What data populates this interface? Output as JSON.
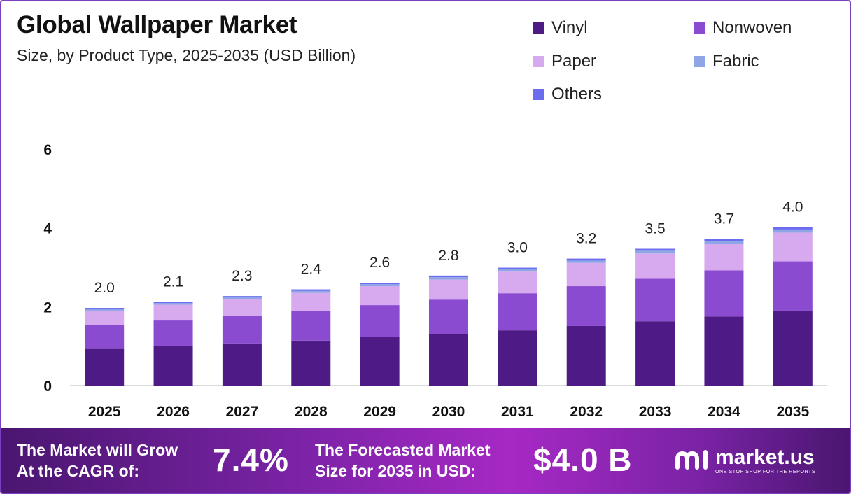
{
  "header": {
    "title": "Global Wallpaper Market",
    "subtitle": "Size, by Product Type, 2025-2035 (USD Billion)"
  },
  "legend": [
    {
      "label": "Vinyl",
      "color": "#4e1a85"
    },
    {
      "label": "Nonwoven",
      "color": "#8a4bd0"
    },
    {
      "label": "Paper",
      "color": "#d7a9ef"
    },
    {
      "label": "Fabric",
      "color": "#8fa6e6"
    },
    {
      "label": "Others",
      "color": "#6b6cf0"
    }
  ],
  "chart_data": {
    "type": "bar",
    "stacked": true,
    "categories": [
      "2025",
      "2026",
      "2027",
      "2028",
      "2029",
      "2030",
      "2031",
      "2032",
      "2033",
      "2034",
      "2035"
    ],
    "series": [
      {
        "name": "Vinyl",
        "color": "#4e1a85",
        "values": [
          0.93,
          1.0,
          1.07,
          1.14,
          1.23,
          1.31,
          1.4,
          1.51,
          1.63,
          1.75,
          1.9
        ]
      },
      {
        "name": "Nonwoven",
        "color": "#8a4bd0",
        "values": [
          0.6,
          0.65,
          0.69,
          0.75,
          0.81,
          0.87,
          0.94,
          1.01,
          1.08,
          1.17,
          1.25
        ]
      },
      {
        "name": "Paper",
        "color": "#d7a9ef",
        "values": [
          0.37,
          0.4,
          0.43,
          0.46,
          0.48,
          0.51,
          0.55,
          0.59,
          0.64,
          0.68,
          0.73
        ]
      },
      {
        "name": "Fabric",
        "color": "#8fa6e6",
        "values": [
          0.04,
          0.04,
          0.05,
          0.05,
          0.05,
          0.06,
          0.06,
          0.06,
          0.07,
          0.07,
          0.08
        ]
      },
      {
        "name": "Others",
        "color": "#6b6cf0",
        "values": [
          0.03,
          0.03,
          0.03,
          0.04,
          0.04,
          0.04,
          0.04,
          0.05,
          0.05,
          0.05,
          0.06
        ]
      }
    ],
    "totals": [
      "2.0",
      "2.1",
      "2.3",
      "2.4",
      "2.6",
      "2.8",
      "3.0",
      "3.2",
      "3.5",
      "3.7",
      "4.0"
    ],
    "yticks": [
      "0",
      "2",
      "4",
      "6"
    ],
    "ylim": [
      0,
      6
    ],
    "grid": false,
    "legend_position": "top-right"
  },
  "footer": {
    "cagr_label_line1": "The Market will Grow",
    "cagr_label_line2": "At the CAGR of:",
    "cagr_value": "7.4%",
    "forecast_label_line1": "The Forecasted Market",
    "forecast_label_line2": "Size for 2035 in USD:",
    "forecast_value": "$4.0 B",
    "brand_name": "market.us",
    "brand_tagline": "ONE STOP SHOP FOR THE REPORTS"
  }
}
